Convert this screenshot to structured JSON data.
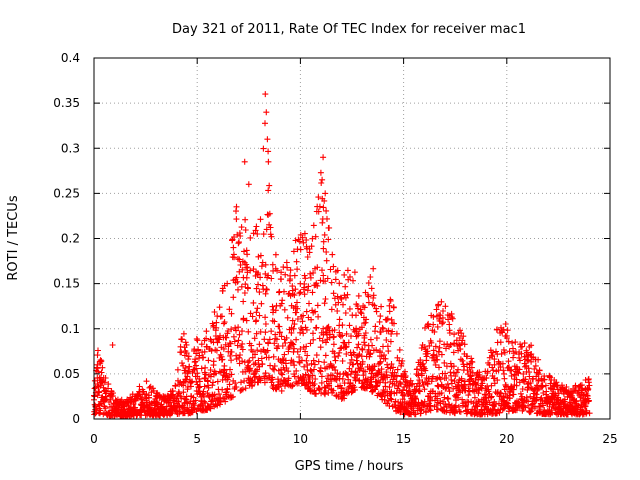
{
  "chart_data": {
    "type": "scatter",
    "title": "Day 321 of 2011, Rate Of TEC Index for receiver mac1",
    "xlabel": "GPS time / hours",
    "ylabel": "ROTI / TECUs",
    "xlim": [
      0,
      25
    ],
    "ylim": [
      0,
      0.4
    ],
    "x_ticks": [
      0,
      5,
      10,
      15,
      20,
      25
    ],
    "x_tick_labels": [
      "0",
      "5",
      "10",
      "15",
      "20",
      "25"
    ],
    "y_ticks": [
      0,
      0.05,
      0.1,
      0.15,
      0.2,
      0.25,
      0.3,
      0.35,
      0.4
    ],
    "y_tick_labels": [
      "0",
      "0.05",
      "0.1",
      "0.15",
      "0.2",
      "0.25",
      "0.3",
      "0.35",
      "0.4"
    ],
    "grid": true,
    "marker": "+",
    "marker_color": "#ff0000",
    "x_step_hours": 0.025,
    "series": [
      {
        "x_range": [
          0,
          24
        ],
        "envelope": {
          "x": [
            0,
            0.2,
            0.5,
            1.0,
            1.5,
            2.0,
            2.5,
            3.0,
            3.5,
            4.0,
            4.3,
            4.6,
            5.0,
            5.5,
            6.0,
            6.5,
            7.0,
            7.5,
            8.0,
            8.3,
            8.6,
            9.0,
            9.5,
            10.0,
            10.5,
            11.0,
            11.5,
            12.0,
            12.5,
            13.0,
            13.5,
            14.0,
            14.5,
            15.0,
            15.5,
            16.0,
            16.5,
            17.0,
            17.5,
            18.0,
            18.5,
            19.0,
            19.5,
            20.0,
            20.5,
            21.0,
            21.5,
            22.0,
            22.5,
            23.0,
            23.5,
            24.0
          ],
          "lower": [
            0.005,
            0.005,
            0.004,
            0.003,
            0.003,
            0.004,
            0.004,
            0.004,
            0.004,
            0.005,
            0.006,
            0.006,
            0.008,
            0.01,
            0.015,
            0.02,
            0.03,
            0.035,
            0.04,
            0.04,
            0.035,
            0.03,
            0.035,
            0.04,
            0.03,
            0.025,
            0.03,
            0.02,
            0.03,
            0.035,
            0.03,
            0.02,
            0.01,
            0.005,
            0.005,
            0.006,
            0.01,
            0.008,
            0.006,
            0.006,
            0.005,
            0.005,
            0.006,
            0.008,
            0.01,
            0.008,
            0.006,
            0.005,
            0.005,
            0.005,
            0.005,
            0.005
          ],
          "upper": [
            0.03,
            0.08,
            0.05,
            0.025,
            0.02,
            0.03,
            0.045,
            0.03,
            0.025,
            0.04,
            0.11,
            0.07,
            0.09,
            0.1,
            0.13,
            0.17,
            0.26,
            0.2,
            0.22,
            0.36,
            0.22,
            0.17,
            0.19,
            0.22,
            0.2,
            0.29,
            0.2,
            0.16,
            0.18,
            0.13,
            0.17,
            0.12,
            0.14,
            0.06,
            0.04,
            0.1,
            0.13,
            0.13,
            0.11,
            0.09,
            0.05,
            0.06,
            0.1,
            0.11,
            0.08,
            0.09,
            0.07,
            0.05,
            0.04,
            0.035,
            0.04,
            0.045
          ]
        },
        "highlighted_points": [
          {
            "x": 8.3,
            "y": 0.36
          },
          {
            "x": 8.35,
            "y": 0.34
          },
          {
            "x": 8.4,
            "y": 0.31
          },
          {
            "x": 8.45,
            "y": 0.285
          },
          {
            "x": 7.3,
            "y": 0.285
          },
          {
            "x": 7.5,
            "y": 0.26
          },
          {
            "x": 11.1,
            "y": 0.29
          },
          {
            "x": 11.05,
            "y": 0.265
          },
          {
            "x": 11.2,
            "y": 0.25
          },
          {
            "x": 0.9,
            "y": 0.082
          }
        ]
      }
    ]
  }
}
